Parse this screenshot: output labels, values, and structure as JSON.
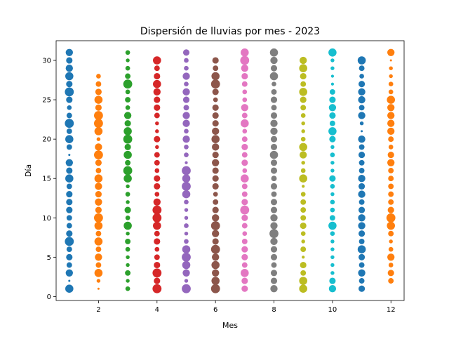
{
  "chart_data": {
    "type": "scatter",
    "title": "Dispersión de lluvias por mes - 2023",
    "xlabel": "Mes",
    "ylabel": "Día",
    "xlim": [
      0.55,
      12.45
    ],
    "ylim": [
      -0.5,
      32.5
    ],
    "xticks": [
      2,
      4,
      6,
      8,
      10,
      12
    ],
    "yticks": [
      0,
      5,
      10,
      15,
      20,
      25,
      30
    ],
    "grid": false,
    "colors": [
      "#1f77b4",
      "#ff7f0e",
      "#2ca02c",
      "#d62728",
      "#9467bd",
      "#8c564b",
      "#e377c2",
      "#7f7f7f",
      "#bcbd22",
      "#17becf",
      "#1f77b4",
      "#ff7f0e"
    ],
    "size_unit": "rain intensity (relative, 0-1)",
    "series": [
      {
        "x": 1,
        "days": [
          1,
          2,
          3,
          4,
          5,
          6,
          7,
          8,
          9,
          10,
          11,
          12,
          13,
          14,
          15,
          16,
          17,
          18,
          19,
          20,
          21,
          22,
          23,
          24,
          25,
          26,
          27,
          28,
          29,
          30,
          31
        ],
        "sizes": [
          0.8,
          0.1,
          0.7,
          0.5,
          0.6,
          0.5,
          0.9,
          0.6,
          0.5,
          0.5,
          0.6,
          0.6,
          0.6,
          0.5,
          0.8,
          0.6,
          0.7,
          0.1,
          0.5,
          0.8,
          0.5,
          0.9,
          0.5,
          0.4,
          0.6,
          0.9,
          0.6,
          0.8,
          0.7,
          0.6,
          0.7
        ]
      },
      {
        "x": 2,
        "days": [
          1,
          2,
          3,
          4,
          5,
          6,
          7,
          8,
          9,
          10,
          11,
          12,
          13,
          14,
          15,
          16,
          17,
          18,
          19,
          20,
          21,
          22,
          23,
          24,
          25,
          26,
          27,
          28
        ],
        "sizes": [
          0.1,
          0.3,
          0.8,
          0.5,
          0.7,
          0.5,
          0.8,
          0.5,
          0.8,
          0.9,
          0.6,
          0.7,
          0.6,
          0.7,
          0.8,
          0.5,
          0.6,
          0.9,
          0.7,
          0.3,
          0.8,
          0.9,
          0.9,
          0.6,
          0.8,
          0.6,
          0.5,
          0.4
        ]
      },
      {
        "x": 3,
        "days": [
          1,
          2,
          3,
          4,
          5,
          6,
          7,
          8,
          9,
          10,
          11,
          12,
          13,
          14,
          15,
          16,
          17,
          18,
          19,
          20,
          21,
          22,
          23,
          24,
          25,
          26,
          27,
          28,
          29,
          30,
          31
        ],
        "sizes": [
          0.4,
          0.3,
          0.5,
          0.3,
          0.3,
          0.4,
          0.5,
          0.3,
          0.8,
          0.4,
          0.6,
          0.3,
          0.4,
          0.3,
          0.8,
          0.9,
          0.5,
          0.8,
          0.6,
          0.9,
          0.8,
          0.6,
          0.7,
          0.4,
          0.5,
          0.4,
          0.9,
          0.5,
          0.4,
          0.3,
          0.4
        ]
      },
      {
        "x": 4,
        "days": [
          1,
          2,
          3,
          4,
          5,
          6,
          7,
          8,
          9,
          10,
          11,
          12,
          13,
          14,
          15,
          16,
          17,
          18,
          19,
          20,
          21,
          22,
          23,
          24,
          25,
          26,
          27,
          28,
          29,
          30
        ],
        "sizes": [
          0.9,
          0.6,
          0.9,
          0.6,
          0.5,
          0.4,
          0.6,
          0.5,
          0.8,
          0.9,
          0.9,
          0.7,
          0.4,
          0.6,
          0.6,
          0.4,
          0.5,
          0.5,
          0.3,
          0.6,
          0.3,
          0.3,
          0.5,
          0.6,
          0.6,
          0.7,
          0.8,
          0.6,
          0.5,
          0.8
        ]
      },
      {
        "x": 5,
        "days": [
          1,
          2,
          3,
          4,
          5,
          6,
          7,
          8,
          9,
          10,
          11,
          12,
          13,
          14,
          15,
          16,
          17,
          18,
          19,
          20,
          21,
          22,
          23,
          24,
          25,
          26,
          27,
          28,
          29,
          30,
          31
        ],
        "sizes": [
          0.9,
          0.3,
          0.7,
          0.8,
          0.9,
          0.8,
          0.4,
          0.3,
          0.4,
          0.3,
          0.3,
          0.4,
          0.8,
          0.9,
          0.8,
          0.9,
          0.2,
          0.4,
          0.4,
          0.7,
          0.4,
          0.7,
          0.7,
          0.5,
          0.6,
          0.7,
          0.4,
          0.7,
          0.4,
          0.4,
          0.6
        ]
      },
      {
        "x": 6,
        "days": [
          1,
          2,
          3,
          4,
          5,
          6,
          7,
          8,
          9,
          10,
          11,
          12,
          13,
          14,
          15,
          16,
          17,
          18,
          19,
          20,
          21,
          22,
          23,
          24,
          25,
          26,
          27,
          28,
          29,
          30
        ],
        "sizes": [
          0.9,
          0.8,
          0.7,
          0.8,
          0.7,
          0.9,
          0.6,
          0.7,
          0.9,
          0.7,
          0.6,
          0.5,
          0.4,
          0.6,
          0.6,
          0.6,
          0.7,
          0.6,
          0.7,
          0.8,
          0.7,
          0.6,
          0.6,
          0.6,
          0.4,
          0.6,
          0.9,
          0.8,
          0.5,
          0.6
        ]
      },
      {
        "x": 7,
        "days": [
          1,
          2,
          3,
          4,
          5,
          6,
          7,
          8,
          9,
          10,
          11,
          12,
          13,
          14,
          15,
          16,
          17,
          18,
          19,
          20,
          21,
          22,
          23,
          24,
          25,
          26,
          27,
          28,
          29,
          30,
          31
        ],
        "sizes": [
          0.6,
          0.6,
          0.8,
          0.5,
          0.6,
          0.6,
          0.5,
          0.4,
          0.5,
          0.6,
          0.9,
          0.6,
          0.5,
          0.5,
          0.8,
          0.4,
          0.6,
          0.5,
          0.6,
          0.5,
          0.4,
          0.8,
          0.5,
          0.7,
          0.4,
          0.4,
          0.5,
          0.6,
          0.7,
          0.9,
          0.8
        ]
      },
      {
        "x": 8,
        "days": [
          1,
          2,
          3,
          4,
          5,
          6,
          7,
          8,
          9,
          10,
          11,
          12,
          13,
          14,
          15,
          16,
          17,
          18,
          19,
          20,
          21,
          22,
          23,
          24,
          25,
          26,
          27,
          28,
          29,
          30,
          31
        ],
        "sizes": [
          0.7,
          0.6,
          0.6,
          0.5,
          0.6,
          0.6,
          0.7,
          0.9,
          0.7,
          0.7,
          0.6,
          0.6,
          0.5,
          0.6,
          0.5,
          0.6,
          0.6,
          0.8,
          0.6,
          0.6,
          0.7,
          0.7,
          0.6,
          0.5,
          0.6,
          0.5,
          0.4,
          0.8,
          0.6,
          0.7,
          0.8
        ]
      },
      {
        "x": 9,
        "days": [
          1,
          2,
          3,
          4,
          5,
          6,
          7,
          8,
          9,
          10,
          11,
          12,
          13,
          14,
          15,
          16,
          17,
          18,
          19,
          20,
          21,
          22,
          23,
          24,
          25,
          26,
          27,
          28,
          29,
          30
        ],
        "sizes": [
          0.8,
          0.8,
          0.5,
          0.6,
          0.2,
          0.5,
          0.3,
          0.4,
          0.6,
          0.5,
          0.5,
          0.5,
          0.4,
          0.2,
          0.8,
          0.4,
          0.3,
          0.7,
          0.8,
          0.4,
          0.3,
          0.3,
          0.4,
          0.5,
          0.6,
          0.8,
          0.5,
          0.6,
          0.8,
          0.7
        ]
      },
      {
        "x": 10,
        "days": [
          1,
          2,
          3,
          4,
          5,
          6,
          7,
          8,
          9,
          10,
          11,
          12,
          13,
          14,
          15,
          16,
          17,
          18,
          19,
          20,
          21,
          22,
          23,
          24,
          25,
          26,
          27,
          28,
          29,
          30,
          31
        ],
        "sizes": [
          0.7,
          0.6,
          0.3,
          0.3,
          0.3,
          0.3,
          0.3,
          0.4,
          0.8,
          0.5,
          0.4,
          0.4,
          0.3,
          0.4,
          0.6,
          0.3,
          0.3,
          0.4,
          0.3,
          0.6,
          0.8,
          0.5,
          0.6,
          0.7,
          0.6,
          0.5,
          0.2,
          0.2,
          0.3,
          0.3,
          0.8
        ]
      },
      {
        "x": 11,
        "days": [
          1,
          2,
          3,
          4,
          5,
          6,
          7,
          8,
          9,
          10,
          11,
          12,
          13,
          14,
          15,
          16,
          17,
          18,
          19,
          20,
          21,
          22,
          23,
          24,
          25,
          26,
          27,
          28,
          29,
          30
        ],
        "sizes": [
          0.6,
          0.5,
          0.7,
          0.5,
          0.6,
          0.8,
          0.5,
          0.6,
          0.7,
          0.7,
          0.6,
          0.5,
          0.7,
          0.6,
          0.7,
          0.5,
          0.5,
          0.6,
          0.5,
          0.7,
          0.1,
          0.3,
          0.7,
          0.5,
          0.7,
          0.7,
          0.6,
          0.4,
          0.5,
          0.8
        ]
      },
      {
        "x": 12,
        "days": [
          2,
          3,
          4,
          5,
          6,
          7,
          8,
          9,
          10,
          11,
          12,
          13,
          14,
          15,
          16,
          17,
          18,
          19,
          20,
          21,
          22,
          23,
          24,
          25,
          26,
          27,
          28,
          29,
          30,
          31
        ],
        "sizes": [
          0.5,
          0.6,
          0.4,
          0.7,
          0.4,
          0.3,
          0.5,
          0.8,
          0.9,
          0.6,
          0.5,
          0.5,
          0.5,
          0.5,
          0.5,
          0.7,
          0.6,
          0.4,
          0.5,
          0.7,
          0.7,
          0.7,
          0.7,
          0.8,
          0.4,
          0.4,
          0.3,
          0.3,
          0.1,
          0.7
        ]
      }
    ]
  }
}
